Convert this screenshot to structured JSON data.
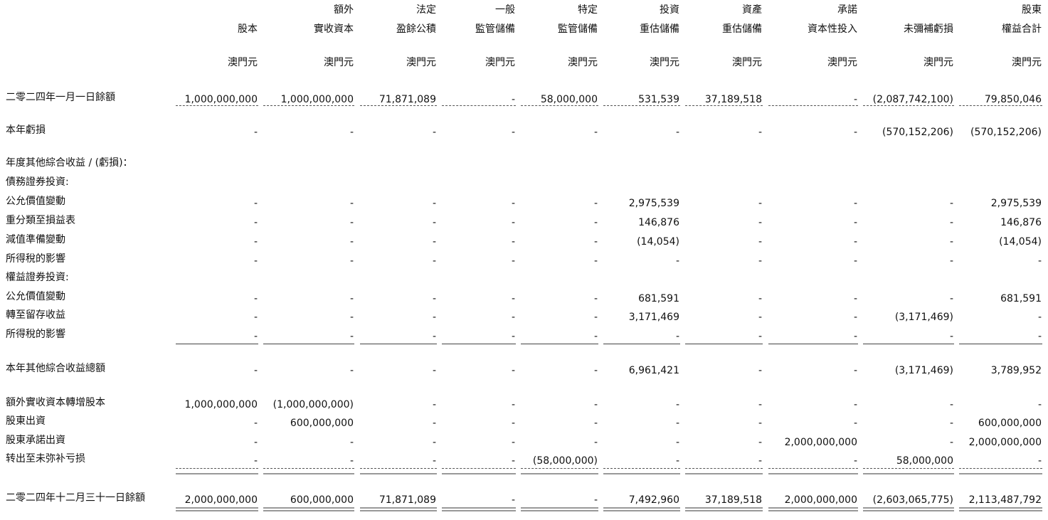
{
  "columns": [
    {
      "lines": [
        "股本"
      ],
      "unit": "澳門元"
    },
    {
      "lines": [
        "額外",
        "實收資本"
      ],
      "unit": "澳門元"
    },
    {
      "lines": [
        "法定",
        "盈餘公積"
      ],
      "unit": "澳門元"
    },
    {
      "lines": [
        "一般",
        "監管儲備"
      ],
      "unit": "澳門元"
    },
    {
      "lines": [
        "特定",
        "監管儲備"
      ],
      "unit": "澳門元"
    },
    {
      "lines": [
        "投資",
        "重估儲備"
      ],
      "unit": "澳門元"
    },
    {
      "lines": [
        "資產",
        "重估儲備"
      ],
      "unit": "澳門元"
    },
    {
      "lines": [
        "承諾",
        "資本性投入"
      ],
      "unit": "澳門元"
    },
    {
      "lines": [
        "未彌補虧損"
      ],
      "unit": "澳門元"
    },
    {
      "lines": [
        "股東",
        "權益合計"
      ],
      "unit": "澳門元"
    }
  ],
  "rows": [
    {
      "label": "二零二四年一月一日餘額",
      "values": [
        "1,000,000,000",
        "1,000,000,000",
        "71,871,089",
        "-",
        "58,000,000",
        "531,539",
        "37,189,518",
        "-",
        "(2,087,742,100)",
        "79,850,046"
      ]
    },
    {
      "label": "本年虧損",
      "values": [
        "-",
        "-",
        "-",
        "-",
        "-",
        "-",
        "-",
        "-",
        "(570,152,206)",
        "(570,152,206)"
      ]
    },
    {
      "label": "年度其他綜合收益 / (虧損)："
    },
    {
      "label": "債務證券投資:"
    },
    {
      "label": "公允價值變動",
      "values": [
        "-",
        "-",
        "-",
        "-",
        "-",
        "2,975,539",
        "-",
        "-",
        "-",
        "2,975,539"
      ]
    },
    {
      "label": "重分類至損益表",
      "values": [
        "-",
        "-",
        "-",
        "-",
        "-",
        "146,876",
        "-",
        "-",
        "-",
        "146,876"
      ]
    },
    {
      "label": "減值準備變動",
      "values": [
        "-",
        "-",
        "-",
        "-",
        "-",
        "(14,054)",
        "-",
        "-",
        "-",
        "(14,054)"
      ]
    },
    {
      "label": "所得稅的影響",
      "values": [
        "-",
        "-",
        "-",
        "-",
        "-",
        "-",
        "-",
        "-",
        "-",
        "-"
      ]
    },
    {
      "label": "權益證券投資:"
    },
    {
      "label": "公允價值變動",
      "values": [
        "-",
        "-",
        "-",
        "-",
        "-",
        "681,591",
        "-",
        "-",
        "-",
        "681,591"
      ]
    },
    {
      "label": "轉至留存收益",
      "values": [
        "-",
        "-",
        "-",
        "-",
        "-",
        "3,171,469",
        "-",
        "-",
        "(3,171,469)",
        "-"
      ]
    },
    {
      "label": "所得稅的影響",
      "values": [
        "-",
        "-",
        "-",
        "-",
        "-",
        "-",
        "-",
        "-",
        "-",
        "-"
      ]
    },
    {
      "label": "本年其他綜合收益總額",
      "values": [
        "-",
        "-",
        "-",
        "-",
        "-",
        "6,961,421",
        "-",
        "-",
        "(3,171,469)",
        "3,789,952"
      ]
    },
    {
      "label": "額外實收資本轉增股本",
      "values": [
        "1,000,000,000",
        "(1,000,000,000)",
        "-",
        "-",
        "-",
        "-",
        "-",
        "-",
        "-",
        "-"
      ]
    },
    {
      "label": "股東出資",
      "values": [
        "-",
        "600,000,000",
        "-",
        "-",
        "-",
        "-",
        "-",
        "-",
        "-",
        "600,000,000"
      ]
    },
    {
      "label": "股東承諾出資",
      "values": [
        "-",
        "-",
        "-",
        "-",
        "-",
        "-",
        "-",
        "2,000,000,000",
        "-",
        "2,000,000,000"
      ]
    },
    {
      "label": "转出至未弥补亏损",
      "values": [
        "-",
        "-",
        "-",
        "-",
        "(58,000,000)",
        "-",
        "-",
        "-",
        "58,000,000",
        "-"
      ]
    },
    {
      "label": "二零二四年十二月三十一日餘額",
      "values": [
        "2,000,000,000",
        "600,000,000",
        "71,871,089",
        "-",
        "-",
        "7,492,960",
        "37,189,518",
        "2,000,000,000",
        "(2,603,065,775)",
        "2,113,487,792"
      ]
    }
  ]
}
